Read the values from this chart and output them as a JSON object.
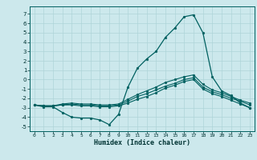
{
  "xlabel": "Humidex (Indice chaleur)",
  "bg_color": "#cce8ec",
  "grid_color": "#aed4d8",
  "line_color": "#006060",
  "xmin": -0.5,
  "xmax": 23.5,
  "ymin": -5.5,
  "ymax": 7.8,
  "yticks": [
    -5,
    -4,
    -3,
    -2,
    -1,
    0,
    1,
    2,
    3,
    4,
    5,
    6,
    7
  ],
  "xticks": [
    0,
    1,
    2,
    3,
    4,
    5,
    6,
    7,
    8,
    9,
    10,
    11,
    12,
    13,
    14,
    15,
    16,
    17,
    18,
    19,
    20,
    21,
    22,
    23
  ],
  "line1_x": [
    0,
    1,
    2,
    3,
    4,
    5,
    6,
    7,
    8,
    9,
    10,
    11,
    12,
    13,
    14,
    15,
    16,
    17,
    18,
    19,
    20,
    21,
    22,
    23
  ],
  "line1_y": [
    -2.7,
    -2.9,
    -2.9,
    -3.5,
    -4.0,
    -4.1,
    -4.1,
    -4.3,
    -4.8,
    -3.7,
    -0.8,
    1.2,
    2.2,
    3.0,
    4.5,
    5.5,
    6.7,
    6.9,
    5.0,
    0.3,
    -1.2,
    -1.7,
    -2.5,
    -3.0
  ],
  "line2_x": [
    0,
    1,
    2,
    3,
    4,
    5,
    6,
    7,
    8,
    9,
    10,
    11,
    12,
    13,
    14,
    15,
    16,
    17,
    18,
    19,
    20,
    21,
    22,
    23
  ],
  "line2_y": [
    -2.7,
    -2.8,
    -2.8,
    -2.7,
    -2.7,
    -2.8,
    -2.8,
    -2.9,
    -2.9,
    -2.8,
    -2.5,
    -2.1,
    -1.8,
    -1.4,
    -0.9,
    -0.6,
    -0.2,
    0.0,
    -1.0,
    -1.5,
    -1.8,
    -2.2,
    -2.6,
    -3.0
  ],
  "line3_x": [
    0,
    1,
    2,
    3,
    4,
    5,
    6,
    7,
    8,
    9,
    10,
    11,
    12,
    13,
    14,
    15,
    16,
    17,
    18,
    19,
    20,
    21,
    22,
    23
  ],
  "line3_y": [
    -2.7,
    -2.8,
    -2.8,
    -2.7,
    -2.6,
    -2.7,
    -2.7,
    -2.8,
    -2.8,
    -2.7,
    -2.3,
    -1.8,
    -1.5,
    -1.1,
    -0.7,
    -0.4,
    0.0,
    0.2,
    -0.8,
    -1.3,
    -1.6,
    -2.0,
    -2.3,
    -2.7
  ],
  "line4_x": [
    0,
    1,
    2,
    3,
    4,
    5,
    6,
    7,
    8,
    9,
    10,
    11,
    12,
    13,
    14,
    15,
    16,
    17,
    18,
    19,
    20,
    21,
    22,
    23
  ],
  "line4_y": [
    -2.7,
    -2.8,
    -2.8,
    -2.6,
    -2.5,
    -2.6,
    -2.6,
    -2.7,
    -2.7,
    -2.6,
    -2.1,
    -1.6,
    -1.2,
    -0.8,
    -0.3,
    0.0,
    0.3,
    0.5,
    -0.5,
    -1.1,
    -1.4,
    -1.8,
    -2.2,
    -2.5
  ]
}
